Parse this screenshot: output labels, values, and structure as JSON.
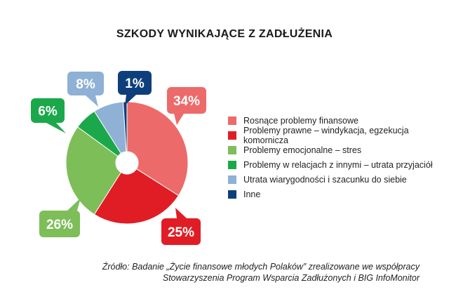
{
  "chart_data": {
    "type": "pie",
    "donut": true,
    "title": "SZKODY WYNIKAJĄCE Z ZADŁUŻENIA",
    "categories": [
      "Rosnące problemy finansowe",
      "Problemy prawne – windykacja, egzekucja komornicza",
      "Problemy emocjonalne – stres",
      "Problemy w relacjach z innymi – utrata przyjaciół",
      "Utrata wiarygodności i szacunku do siebie",
      "Inne"
    ],
    "values": [
      34,
      25,
      26,
      6,
      8,
      1
    ],
    "labels": [
      "34%",
      "25%",
      "26%",
      "6%",
      "8%",
      "1%"
    ],
    "colors": [
      "#ED6A6A",
      "#E01D25",
      "#7DBE59",
      "#1BA84A",
      "#8EB1D5",
      "#0E3F7C"
    ],
    "legend_position": "right",
    "grid": false
  },
  "source": {
    "line1": "Źródło: Badanie „Życie finansowe młodych Polaków” zrealizowane we współpracy",
    "line2": "Stowarzyszenia Program Wsparcia Zadłużonych i BIG InfoMonitor"
  }
}
